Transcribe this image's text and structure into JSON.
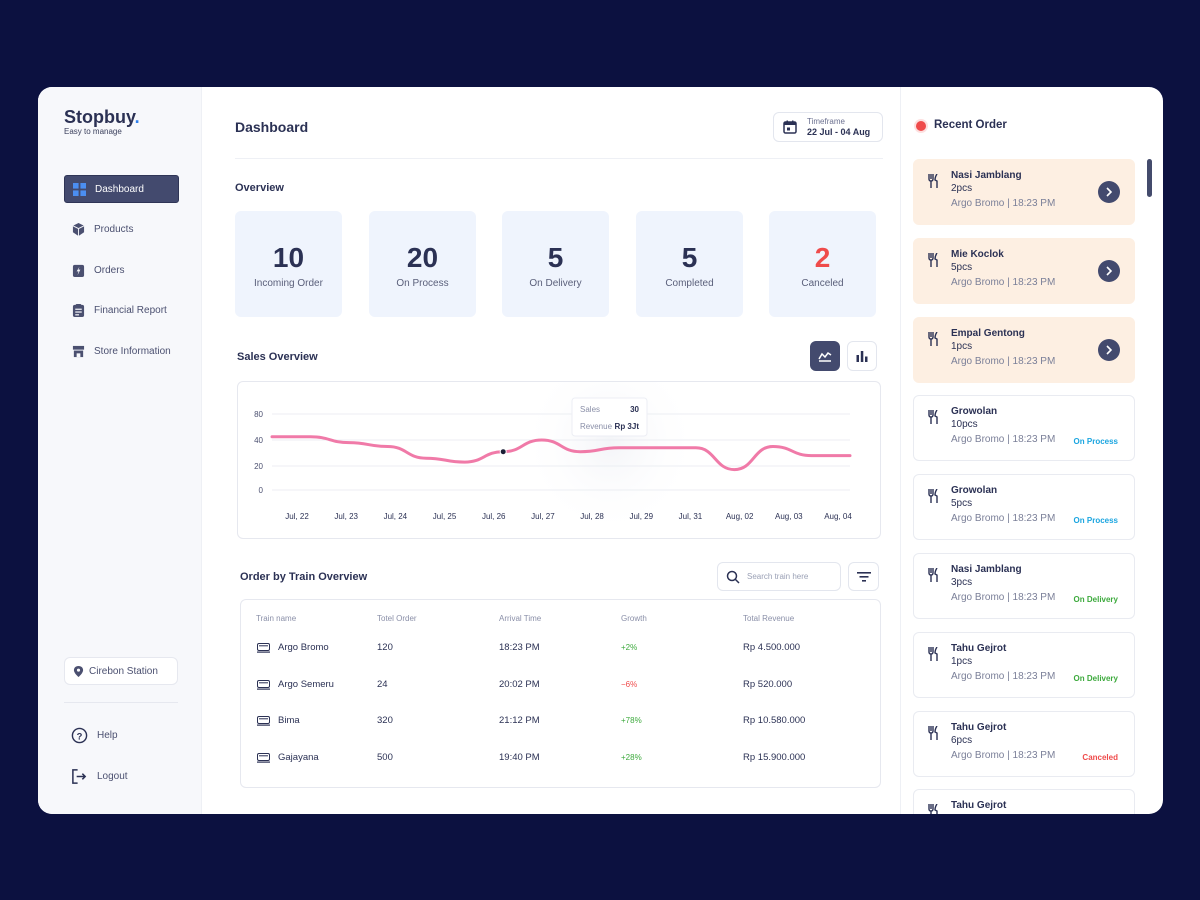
{
  "brand": {
    "name": "Stopbuy",
    "dot": ".",
    "tagline": "Easy to manage"
  },
  "nav": [
    {
      "label": "Dashboard",
      "icon": "grid-icon"
    },
    {
      "label": "Products",
      "icon": "box-icon"
    },
    {
      "label": "Orders",
      "icon": "clipboard-bolt-icon"
    },
    {
      "label": "Financial Report",
      "icon": "report-icon"
    },
    {
      "label": "Store Information",
      "icon": "store-icon"
    }
  ],
  "station": "Cirebon Station",
  "help": "Help",
  "logout": "Logout",
  "header": {
    "title": "Dashboard",
    "timeframe_label": "Timeframe",
    "timeframe_value": "22 Jul - 04 Aug"
  },
  "overview": {
    "title": "Overview",
    "stats": [
      {
        "value": "10",
        "label": "Incoming Order"
      },
      {
        "value": "20",
        "label": "On Process"
      },
      {
        "value": "5",
        "label": "On Delivery"
      },
      {
        "value": "5",
        "label": "Completed"
      },
      {
        "value": "2",
        "label": "Canceled"
      }
    ]
  },
  "sales": {
    "title": "Sales Overview",
    "tooltip": {
      "sales_label": "Sales",
      "sales_value": "30",
      "revenue_label": "Revenue",
      "revenue_value": "Rp 3Jt"
    }
  },
  "chart_data": {
    "type": "line",
    "categories": [
      "Jul, 22",
      "Jul, 23",
      "Jul, 24",
      "Jul, 25",
      "Jul, 26",
      "Jul, 27",
      "Jul, 28",
      "Jul, 29",
      "Jul, 31",
      "Aug, 02",
      "Aug, 03",
      "Aug, 04"
    ],
    "x": [
      0,
      0.74,
      1.48,
      2.22,
      2.96,
      3.7,
      4.44,
      5.18,
      5.92,
      6.66,
      7.4,
      8.14,
      8.88,
      9.62,
      10.36,
      11.1
    ],
    "y": [
      45,
      45,
      38,
      35,
      26,
      23,
      31,
      40,
      31,
      34,
      34,
      34,
      17,
      35,
      28,
      28
    ],
    "ylim": [
      0,
      80
    ],
    "yticks": [
      0,
      20,
      40,
      80
    ],
    "color": "#f07aa8",
    "highlight": {
      "index": 6
    }
  },
  "orders": {
    "title": "Order by Train Overview",
    "search_placeholder": "Search train here",
    "columns": [
      "Train name",
      "Totel Order",
      "Arrival Time",
      "Growth",
      "Total Revenue"
    ],
    "rows": [
      {
        "name": "Argo Bromo",
        "total": "120",
        "arrival": "18:23 PM",
        "growth": "+2%",
        "revenue": "Rp 4.500.000"
      },
      {
        "name": "Argo Semeru",
        "total": "24",
        "arrival": "20:02 PM",
        "growth": "−6%",
        "revenue": "Rp 520.000"
      },
      {
        "name": "Bima",
        "total": "320",
        "arrival": "21:12 PM",
        "growth": "+78%",
        "revenue": "Rp 10.580.000"
      },
      {
        "name": "Gajayana",
        "total": "500",
        "arrival": "19:40 PM",
        "growth": "+28%",
        "revenue": "Rp 15.900.000"
      }
    ]
  },
  "recent": {
    "title": "Recent Order",
    "items": [
      {
        "name": "Nasi Jamblang",
        "qty": "2pcs",
        "meta": "Argo Bromo | 18:23 PM",
        "status": ""
      },
      {
        "name": "Mie Koclok",
        "qty": "5pcs",
        "meta": "Argo Bromo | 18:23 PM",
        "status": ""
      },
      {
        "name": "Empal Gentong",
        "qty": "1pcs",
        "meta": "Argo Bromo | 18:23 PM",
        "status": ""
      },
      {
        "name": "Growolan",
        "qty": "10pcs",
        "meta": "Argo Bromo | 18:23 PM",
        "status": "On Process"
      },
      {
        "name": "Growolan",
        "qty": "5pcs",
        "meta": "Argo Bromo | 18:23 PM",
        "status": "On Process"
      },
      {
        "name": "Nasi Jamblang",
        "qty": "3pcs",
        "meta": "Argo Bromo | 18:23 PM",
        "status": "On Delivery"
      },
      {
        "name": "Tahu Gejrot",
        "qty": "1pcs",
        "meta": "Argo Bromo | 18:23 PM",
        "status": "On Delivery"
      },
      {
        "name": "Tahu Gejrot",
        "qty": "6pcs",
        "meta": "Argo Bromo | 18:23 PM",
        "status": "Canceled"
      },
      {
        "name": "Tahu Gejrot",
        "qty": "",
        "meta": "",
        "status": ""
      }
    ]
  },
  "colors": {
    "accent": "#434a6e",
    "brand_dot": "#2f80ed",
    "canceled": "#ef4b4b",
    "process": "#1aa5e0",
    "delivery": "#3daa3d",
    "highlight_card": "#fdefe2"
  }
}
